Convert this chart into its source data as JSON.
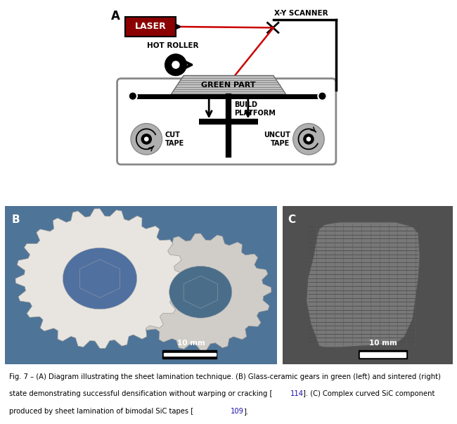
{
  "title_A": "A",
  "title_B": "B",
  "title_C": "C",
  "label_laser": "LASER",
  "label_scanner": "X-Y SCANNER",
  "label_hot_roller": "HOT ROLLER",
  "label_green_part": "GREEN PART",
  "label_build_platform": "BUILD\nPLATFORM",
  "label_cut_tape": "CUT\nTAPE",
  "label_uncut_tape": "UNCUT\nTAPE",
  "label_10mm": "10 mm",
  "bg_color": "#ffffff",
  "laser_box_color": "#8b0000",
  "laser_text_color": "#ffffff",
  "red_line_color": "#cc0000",
  "frame_gray": "#c8c8c8",
  "tape_gray": "#aaaaaa",
  "ref_color": "#1a0dab",
  "caption_line1": "Fig. 7 – (A) Diagram illustrating the sheet lamination technique. (B) Glass-ceramic gears in green (left) and sintered (right)",
  "caption_line2": "state demonstrating successful densification without warping or cracking [114]. (C) Complex curved SiC component",
  "caption_line3": "produced by sheet lamination of bimodal SiC tapes [109].",
  "caption_line2a": "state demonstrating successful densification without warping or cracking [",
  "caption_line2b": "114",
  "caption_line2c": "]. (C) Complex curved SiC component",
  "caption_line3a": "produced by sheet lamination of bimodal SiC tapes [",
  "caption_line3b": "109",
  "caption_line3c": "]."
}
